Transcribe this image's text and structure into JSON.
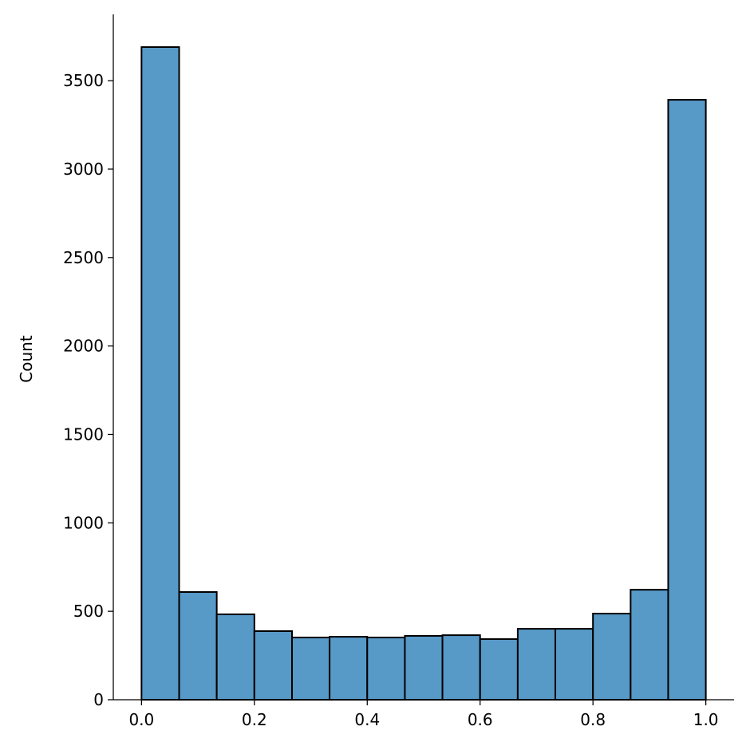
{
  "chart_data": {
    "type": "bar",
    "title": "",
    "xlabel": "",
    "ylabel": "Count",
    "bin_edges": [
      0.0,
      0.0667,
      0.1333,
      0.2,
      0.2667,
      0.3333,
      0.4,
      0.4667,
      0.5333,
      0.6,
      0.6667,
      0.7333,
      0.8,
      0.8667,
      0.9333,
      1.0
    ],
    "values": [
      3690,
      609,
      483,
      388,
      352,
      356,
      352,
      361,
      365,
      343,
      401,
      401,
      487,
      622,
      3392
    ],
    "xlim": [
      -0.05,
      1.05
    ],
    "ylim": [
      0,
      3875
    ],
    "xticks": [
      "0.0",
      "0.2",
      "0.4",
      "0.6",
      "0.8",
      "1.0"
    ],
    "yticks": [
      "0",
      "500",
      "1000",
      "1500",
      "2000",
      "2500",
      "3000",
      "3500"
    ],
    "grid": false,
    "bar_color": "#5799c7",
    "edge_color": "#000000"
  }
}
